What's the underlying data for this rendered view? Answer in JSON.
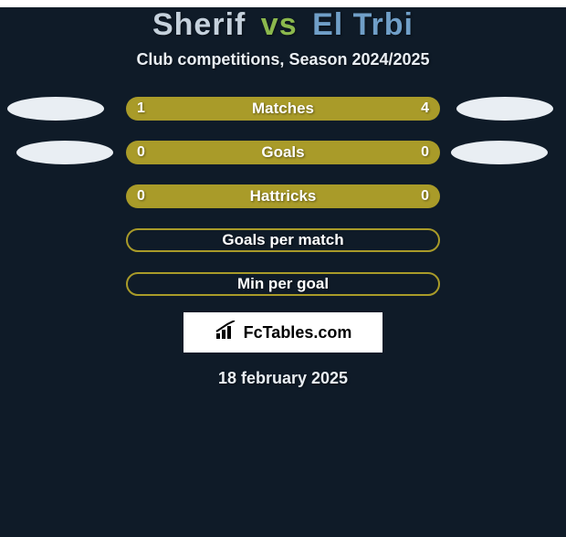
{
  "background_color": "#0f1b28",
  "title": {
    "player1": "Sherif",
    "vs": "vs",
    "player2": "El Trbi",
    "player1_color": "#c5d1dc",
    "vs_color": "#8bb84d",
    "player2_color": "#709fc8"
  },
  "subtitle": {
    "text": "Club competitions, Season 2024/2025",
    "color": "#e9eef3"
  },
  "accent_colors": {
    "olive": "#a99b29",
    "white": "#ffffff",
    "bar_border": "#a99b29",
    "bar_label": "#ffffff",
    "ellipse_left": "#e9eef3",
    "ellipse_right": "#e9eef3"
  },
  "rows": [
    {
      "label": "Matches",
      "left_value": "1",
      "right_value": "4",
      "left_fill_pct": 18,
      "right_fill_pct": 82,
      "left_fill_color": "#a99b29",
      "right_fill_color": "#a99b29",
      "has_border": false,
      "show_values": true,
      "show_left_ellipse": true,
      "show_right_ellipse": true
    },
    {
      "label": "Goals",
      "left_value": "0",
      "right_value": "0",
      "left_fill_pct": 50,
      "right_fill_pct": 50,
      "left_fill_color": "#a99b29",
      "right_fill_color": "#a99b29",
      "has_border": false,
      "show_values": true,
      "show_left_ellipse": true,
      "show_right_ellipse": true
    },
    {
      "label": "Hattricks",
      "left_value": "0",
      "right_value": "0",
      "left_fill_pct": 50,
      "right_fill_pct": 50,
      "left_fill_color": "#a99b29",
      "right_fill_color": "#a99b29",
      "has_border": false,
      "show_values": true,
      "show_left_ellipse": false,
      "show_right_ellipse": false
    },
    {
      "label": "Goals per match",
      "left_value": "",
      "right_value": "",
      "left_fill_pct": 0,
      "right_fill_pct": 0,
      "left_fill_color": "#a99b29",
      "right_fill_color": "#a99b29",
      "has_border": true,
      "show_values": false,
      "show_left_ellipse": false,
      "show_right_ellipse": false
    },
    {
      "label": "Min per goal",
      "left_value": "",
      "right_value": "",
      "left_fill_pct": 0,
      "right_fill_pct": 0,
      "left_fill_color": "#a99b29",
      "right_fill_color": "#a99b29",
      "has_border": true,
      "show_values": false,
      "show_left_ellipse": false,
      "show_right_ellipse": false
    }
  ],
  "brand": {
    "text": "FcTables.com",
    "box_bg": "#ffffff",
    "icon_color": "#000000"
  },
  "date": {
    "text": "18 february 2025",
    "color": "#e9eef3"
  },
  "ellipse_offsets": {
    "left_x_shift": [
      0,
      10
    ],
    "right_x_shift": [
      0,
      10
    ]
  }
}
